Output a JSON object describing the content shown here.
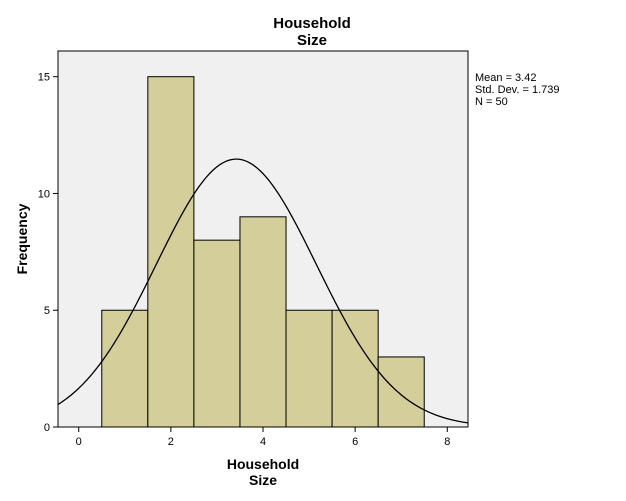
{
  "chart_data": {
    "type": "bar",
    "title_lines": [
      "Household",
      "Size"
    ],
    "xlabel_lines": [
      "Household",
      "Size"
    ],
    "ylabel": "Frequency",
    "bins": [
      {
        "from": 0.5,
        "to": 1.5,
        "count": 5
      },
      {
        "from": 1.5,
        "to": 2.5,
        "count": 15
      },
      {
        "from": 2.5,
        "to": 3.5,
        "count": 8
      },
      {
        "from": 3.5,
        "to": 4.5,
        "count": 9
      },
      {
        "from": 4.5,
        "to": 5.5,
        "count": 5
      },
      {
        "from": 5.5,
        "to": 6.5,
        "count": 5
      },
      {
        "from": 6.5,
        "to": 7.5,
        "count": 3
      }
    ],
    "xlim": [
      -0.45,
      8.45
    ],
    "ylim": [
      0,
      16.1
    ],
    "xticks": [
      0,
      2,
      4,
      6,
      8
    ],
    "yticks": [
      0,
      5,
      10,
      15
    ],
    "normal_curve": {
      "mean": 3.42,
      "std_dev": 1.739,
      "n": 50,
      "bin_width": 1
    },
    "stats": [
      "Mean = 3.42",
      "Std. Dev. = 1.739",
      "N = 50"
    ],
    "grid": false,
    "colors": {
      "plot_background": "#f0f0f0",
      "bar_fill": "#d3ce9a",
      "bar_stroke": "#000000",
      "curve": "#000000"
    }
  }
}
